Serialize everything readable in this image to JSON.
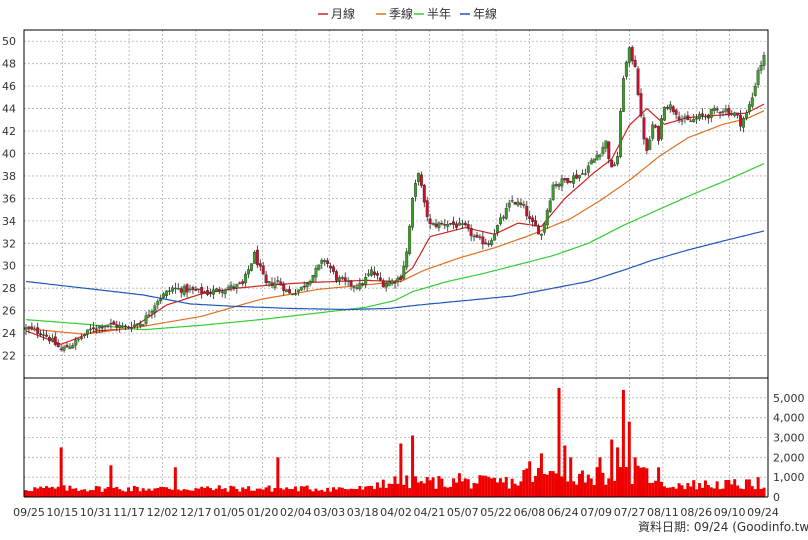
{
  "colors": {
    "background": "#ffffff",
    "grid": "#b0b0b0",
    "frame": "#000000",
    "up_candle": "#3a9c2a",
    "down_candle": "#c8102e",
    "volume_bar": "#ee0000",
    "ma_month": "#cc2222",
    "ma_quarter": "#e07020",
    "ma_halfyear": "#33cc33",
    "ma_year": "#2255bb"
  },
  "footer": {
    "text": "資料日期: 09/24  (Goodinfo.tw)"
  },
  "chart_data": [
    {
      "type": "candlestick",
      "title": "",
      "legend": [
        {
          "name": "月線",
          "color": "#cc2222"
        },
        {
          "name": "季線",
          "color": "#e07020"
        },
        {
          "name": "半年",
          "color": "#33cc33"
        },
        {
          "name": "年線",
          "color": "#2255bb"
        }
      ],
      "legend_placement": "top-center",
      "grid": true,
      "ylim": [
        20,
        51
      ],
      "y_ticks": [
        22,
        24,
        26,
        28,
        30,
        32,
        34,
        36,
        38,
        40,
        42,
        44,
        46,
        48,
        50
      ],
      "x_ticks": [
        "09/25",
        "10/15",
        "10/31",
        "11/17",
        "12/02",
        "12/17",
        "01/05",
        "01/20",
        "02/04",
        "03/03",
        "03/18",
        "04/02",
        "04/21",
        "05/07",
        "05/22",
        "06/08",
        "06/24",
        "07/09",
        "07/27",
        "08/11",
        "08/26",
        "09/10",
        "09/24"
      ],
      "close_path": [
        [
          0,
          24.4
        ],
        [
          6,
          24.0
        ],
        [
          12,
          22.5
        ],
        [
          17,
          23.2
        ],
        [
          23,
          24.5
        ],
        [
          28,
          24.8
        ],
        [
          34,
          24.5
        ],
        [
          40,
          25.0
        ],
        [
          45,
          27.0
        ],
        [
          50,
          28.0
        ],
        [
          56,
          27.8
        ],
        [
          62,
          27.6
        ],
        [
          68,
          28.0
        ],
        [
          74,
          28.3
        ],
        [
          78,
          31.0
        ],
        [
          82,
          28.3
        ],
        [
          86,
          28.6
        ],
        [
          90,
          27.5
        ],
        [
          94,
          28.0
        ],
        [
          98,
          29.2
        ],
        [
          102,
          30.6
        ],
        [
          106,
          28.9
        ],
        [
          110,
          28.4
        ],
        [
          114,
          28.2
        ],
        [
          118,
          29.5
        ],
        [
          122,
          28.4
        ],
        [
          126,
          28.7
        ],
        [
          128,
          29.0
        ],
        [
          130,
          31.2
        ],
        [
          132,
          35.8
        ],
        [
          134,
          38.5
        ],
        [
          136,
          35.4
        ],
        [
          138,
          33.6
        ],
        [
          144,
          33.8
        ],
        [
          150,
          33.4
        ],
        [
          154,
          32.3
        ],
        [
          158,
          32.0
        ],
        [
          160,
          33.0
        ],
        [
          162,
          34.0
        ],
        [
          166,
          35.8
        ],
        [
          170,
          35.2
        ],
        [
          172,
          34.0
        ],
        [
          176,
          32.8
        ],
        [
          178,
          35.0
        ],
        [
          180,
          37.2
        ],
        [
          184,
          37.6
        ],
        [
          190,
          38.2
        ],
        [
          194,
          39.5
        ],
        [
          198,
          41.0
        ],
        [
          200,
          38.5
        ],
        [
          202,
          39.8
        ],
        [
          204,
          47.0
        ],
        [
          206,
          49.0
        ],
        [
          208,
          48.0
        ],
        [
          210,
          43.0
        ],
        [
          212,
          40.0
        ],
        [
          214,
          42.5
        ],
        [
          216,
          41.5
        ],
        [
          218,
          44.5
        ],
        [
          222,
          43.8
        ],
        [
          224,
          43.0
        ],
        [
          226,
          42.8
        ],
        [
          230,
          43.2
        ],
        [
          234,
          43.6
        ],
        [
          238,
          44.0
        ],
        [
          242,
          43.5
        ],
        [
          244,
          42.8
        ],
        [
          246,
          43.5
        ],
        [
          248,
          45.0
        ],
        [
          250,
          47.5
        ],
        [
          252,
          48.5
        ]
      ],
      "ma_lines": {
        "月線": [
          [
            0,
            24.2
          ],
          [
            12,
            23.0
          ],
          [
            24,
            24.2
          ],
          [
            36,
            24.4
          ],
          [
            48,
            26.5
          ],
          [
            60,
            27.5
          ],
          [
            72,
            28.0
          ],
          [
            84,
            28.3
          ],
          [
            96,
            28.5
          ],
          [
            106,
            28.6
          ],
          [
            116,
            28.7
          ],
          [
            126,
            28.6
          ],
          [
            132,
            29.8
          ],
          [
            138,
            32.6
          ],
          [
            150,
            33.4
          ],
          [
            160,
            32.8
          ],
          [
            168,
            33.8
          ],
          [
            176,
            33.5
          ],
          [
            184,
            36.0
          ],
          [
            194,
            38.3
          ],
          [
            200,
            39.5
          ],
          [
            206,
            42.5
          ],
          [
            212,
            44.0
          ],
          [
            218,
            42.6
          ],
          [
            226,
            43.2
          ],
          [
            236,
            43.4
          ],
          [
            246,
            43.6
          ],
          [
            252,
            44.4
          ]
        ],
        "季線": [
          [
            0,
            24.4
          ],
          [
            20,
            23.9
          ],
          [
            40,
            24.6
          ],
          [
            60,
            25.5
          ],
          [
            80,
            27.0
          ],
          [
            100,
            27.9
          ],
          [
            116,
            28.3
          ],
          [
            128,
            28.6
          ],
          [
            136,
            29.6
          ],
          [
            148,
            30.7
          ],
          [
            160,
            31.6
          ],
          [
            172,
            32.7
          ],
          [
            186,
            34.2
          ],
          [
            196,
            35.8
          ],
          [
            206,
            37.6
          ],
          [
            216,
            39.7
          ],
          [
            226,
            41.4
          ],
          [
            238,
            42.6
          ],
          [
            246,
            43.1
          ],
          [
            252,
            43.8
          ]
        ],
        "半年": [
          [
            0,
            25.2
          ],
          [
            20,
            24.8
          ],
          [
            40,
            24.3
          ],
          [
            60,
            24.7
          ],
          [
            80,
            25.2
          ],
          [
            100,
            25.8
          ],
          [
            116,
            26.3
          ],
          [
            126,
            26.9
          ],
          [
            132,
            27.7
          ],
          [
            144,
            28.6
          ],
          [
            156,
            29.3
          ],
          [
            168,
            30.1
          ],
          [
            180,
            30.9
          ],
          [
            192,
            32.0
          ],
          [
            204,
            33.6
          ],
          [
            216,
            35.0
          ],
          [
            228,
            36.4
          ],
          [
            240,
            37.7
          ],
          [
            252,
            39.1
          ]
        ],
        "年線": [
          [
            0,
            28.6
          ],
          [
            20,
            28.0
          ],
          [
            40,
            27.4
          ],
          [
            56,
            26.6
          ],
          [
            70,
            26.4
          ],
          [
            90,
            26.2
          ],
          [
            110,
            26.1
          ],
          [
            124,
            26.2
          ],
          [
            134,
            26.5
          ],
          [
            150,
            26.9
          ],
          [
            166,
            27.3
          ],
          [
            180,
            28.0
          ],
          [
            192,
            28.6
          ],
          [
            204,
            29.6
          ],
          [
            214,
            30.5
          ],
          [
            226,
            31.4
          ],
          [
            238,
            32.2
          ],
          [
            252,
            33.1
          ]
        ]
      }
    },
    {
      "type": "bar",
      "title": "",
      "series_name": "volume",
      "ylim": [
        0,
        6000
      ],
      "y_ticks": [
        "0",
        "1,000",
        "2,000",
        "3,000",
        "4,000",
        "5,000"
      ],
      "y_tick_values": [
        0,
        1000,
        2000,
        3000,
        4000,
        5000
      ],
      "spikes": [
        {
          "i": 12,
          "v": 2500
        },
        {
          "i": 29,
          "v": 1600
        },
        {
          "i": 51,
          "v": 1500
        },
        {
          "i": 86,
          "v": 2000
        },
        {
          "i": 128,
          "v": 2700
        },
        {
          "i": 132,
          "v": 3100
        },
        {
          "i": 148,
          "v": 1200
        },
        {
          "i": 172,
          "v": 1800
        },
        {
          "i": 176,
          "v": 2200
        },
        {
          "i": 182,
          "v": 5500
        },
        {
          "i": 184,
          "v": 2600
        },
        {
          "i": 186,
          "v": 2000
        },
        {
          "i": 196,
          "v": 2000
        },
        {
          "i": 200,
          "v": 2900
        },
        {
          "i": 202,
          "v": 2500
        },
        {
          "i": 204,
          "v": 5400
        },
        {
          "i": 206,
          "v": 3800
        },
        {
          "i": 208,
          "v": 2000
        },
        {
          "i": 216,
          "v": 1500
        },
        {
          "i": 250,
          "v": 1000
        }
      ]
    }
  ]
}
